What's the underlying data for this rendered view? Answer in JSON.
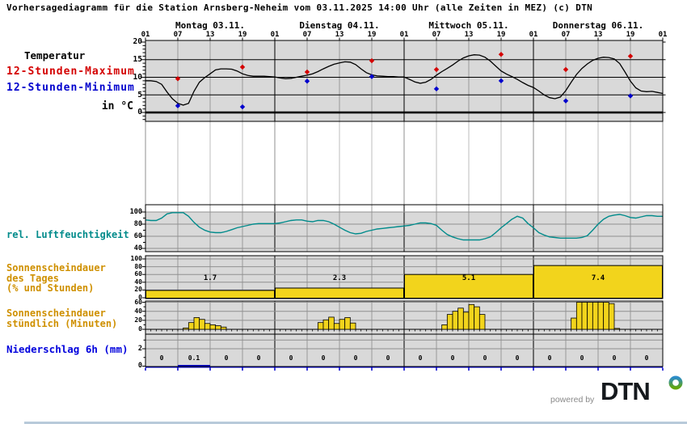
{
  "title": "Vorhersagediagramm für die Station Arnsberg-Neheim vom 03.11.2025 14:00 Uhr (alle Zeiten in MEZ)   (c) DTN",
  "days": [
    "Montag 03.11.",
    "Dienstag 04.11.",
    "Mittwoch 05.11.",
    "Donnerstag 06.11."
  ],
  "hour_labels": [
    "01",
    "07",
    "13",
    "19",
    "01",
    "07",
    "13",
    "19",
    "01",
    "07",
    "13",
    "19",
    "01",
    "07",
    "13",
    "19",
    "01"
  ],
  "panels": {
    "temperature": {
      "label": "Temperatur",
      "legend_max": "12-Stunden-Maximum",
      "legend_min": "12-Stunden-Minimum",
      "unit_label": "in °C",
      "y_ticks": [
        20,
        15,
        10,
        5,
        0
      ],
      "curve_color": "#000000",
      "max_color": "#d40000",
      "min_color": "#0000cd"
    },
    "humidity": {
      "label": "rel. Luftfeuchtigkeit",
      "y_ticks": [
        100,
        80,
        60,
        40
      ],
      "curve_color": "#008b8b"
    },
    "sunshine_daily": {
      "label_lines": [
        "Sonnenscheindauer",
        "des Tages",
        "(% und Stunden)"
      ],
      "y_ticks": [
        100,
        80,
        60,
        40,
        20,
        0
      ],
      "bar_color": "#f2d41c"
    },
    "sunshine_hourly": {
      "label_lines": [
        "Sonnenscheindauer",
        "stündlich (Minuten)"
      ],
      "y_ticks": [
        60,
        40,
        20,
        0
      ],
      "bar_color": "#f2d41c"
    },
    "precipitation": {
      "label": "Niederschlag 6h (mm)",
      "y_ticks": [
        2,
        0
      ],
      "axis_color": "#0000cd"
    }
  },
  "footer": {
    "powered_by": "powered by",
    "logo_text": "DTN"
  },
  "colors": {
    "panel_bg": "#d9d9d9",
    "grid_gray": "#999999",
    "hgrid_gray": "#909090",
    "gap_line": "#bdbdbd",
    "gap_day_line": "#8f8f8f",
    "yellow": "#f2d41c",
    "teal": "#008b8b",
    "red": "#d40000",
    "blue": "#0000cd",
    "logo_blue": "#2b8cc9",
    "logo_green": "#63a70a"
  },
  "chart_data": [
    {
      "name": "temperature",
      "type": "line",
      "title": "Temperatur 12-Stunden-Maximum / 12-Stunden-Minimum",
      "ylabel": "°C",
      "ylim": [
        -2.5,
        20
      ],
      "x_note": "hourly values, hour 1 = Montag 03.11. 01:00 MEZ ... hour 97 = Freitag 01:00 MEZ",
      "values": [
        9,
        9,
        8.8,
        8,
        5.8,
        3.9,
        2.6,
        2.1,
        2.6,
        6,
        8.6,
        9.9,
        11,
        12.1,
        12.4,
        12.4,
        12.3,
        11.8,
        11,
        10.5,
        10.3,
        10.3,
        10.3,
        10.2,
        10.1,
        9.8,
        9.6,
        9.7,
        10,
        10.3,
        10.6,
        11,
        11.6,
        12.4,
        13.1,
        13.7,
        14.1,
        14.4,
        14.3,
        13.6,
        12.4,
        11.3,
        10.7,
        10.4,
        10.3,
        10.2,
        10.2,
        10.1,
        10.1,
        9.4,
        8.7,
        8.3,
        8.6,
        9.4,
        10.6,
        11.6,
        12.5,
        13.5,
        14.6,
        15.5,
        16.1,
        16.4,
        16.3,
        15.7,
        14.6,
        13.2,
        11.8,
        10.9,
        10.2,
        9.4,
        8.5,
        7.7,
        7.1,
        6.1,
        5,
        4.2,
        3.9,
        4.4,
        6.2,
        8.6,
        10.8,
        12.5,
        13.8,
        14.8,
        15.4,
        15.7,
        15.6,
        15.2,
        13.9,
        11.5,
        8.9,
        7,
        6.1,
        5.9,
        6,
        5.7,
        5.4
      ],
      "markers_12h_max": [
        [
          7,
          9.6
        ],
        [
          19,
          12.9
        ],
        [
          31,
          11.5
        ],
        [
          43,
          14.7
        ],
        [
          55,
          12.2
        ],
        [
          67,
          16.5
        ],
        [
          79,
          12.2
        ],
        [
          91,
          16
        ]
      ],
      "markers_12h_min": [
        [
          7,
          1.9
        ],
        [
          19,
          1.6
        ],
        [
          31,
          8.9
        ],
        [
          43,
          10.2
        ],
        [
          55,
          6.7
        ],
        [
          67,
          9
        ],
        [
          79,
          3.3
        ],
        [
          91,
          4.7
        ]
      ]
    },
    {
      "name": "humidity",
      "type": "line",
      "title": "rel. Luftfeuchtigkeit",
      "ylabel": "%",
      "ylim": [
        40,
        110
      ],
      "values": [
        87,
        86,
        86,
        90,
        97,
        99,
        99,
        99,
        93,
        83,
        75,
        70,
        67,
        66,
        66,
        68,
        71,
        74,
        76,
        78,
        80,
        81,
        81,
        81,
        81,
        82,
        84,
        86,
        87,
        87,
        85,
        84,
        86,
        86,
        84,
        80,
        75,
        70,
        66,
        64,
        65,
        68,
        70,
        72,
        73,
        74,
        75,
        76,
        77,
        78,
        80,
        82,
        82,
        81,
        78,
        70,
        63,
        59,
        56,
        54,
        54,
        54,
        54,
        56,
        59,
        66,
        74,
        81,
        88,
        93,
        90,
        81,
        74,
        66,
        62,
        59,
        58,
        57,
        57,
        57,
        57,
        58,
        61,
        70,
        80,
        88,
        93,
        95,
        96,
        94,
        91,
        90,
        92,
        94,
        94,
        93,
        93
      ]
    },
    {
      "name": "sunshine_daily",
      "type": "bar",
      "title": "Sonnenscheindauer des Tages (% und Stunden)",
      "categories": [
        "Montag 03.11.",
        "Dienstag 04.11.",
        "Mittwoch 05.11.",
        "Donnerstag 06.11."
      ],
      "hours": [
        1.7,
        2.3,
        5.1,
        7.4
      ],
      "percent": [
        19,
        25,
        60,
        83
      ],
      "ylim": [
        0,
        100
      ]
    },
    {
      "name": "sunshine_hourly",
      "type": "bar",
      "title": "Sonnenscheindauer stündlich (Minuten)",
      "unit": "Minuten",
      "ylim": [
        0,
        60
      ],
      "bars": [
        {
          "day": 0,
          "start_hour": 8,
          "values": [
            3,
            15,
            26,
            22,
            13,
            10,
            8,
            5
          ]
        },
        {
          "day": 1,
          "start_hour": 9,
          "values": [
            15,
            21,
            27,
            13,
            22,
            26,
            14
          ]
        },
        {
          "day": 2,
          "start_hour": 8,
          "values": [
            10,
            33,
            40,
            47,
            38,
            55,
            50,
            33
          ]
        },
        {
          "day": 3,
          "start_hour": 8,
          "values": [
            25,
            60,
            60,
            60,
            60,
            60,
            60,
            57,
            2
          ]
        }
      ]
    },
    {
      "name": "precipitation_6h",
      "type": "bar",
      "title": "Niederschlag 6h (mm)",
      "unit": "mm",
      "ylim": [
        0,
        4
      ],
      "values": [
        0,
        0.1,
        0,
        0,
        0,
        0,
        0,
        0,
        0,
        0,
        0,
        0,
        0,
        0,
        0,
        0
      ]
    }
  ]
}
